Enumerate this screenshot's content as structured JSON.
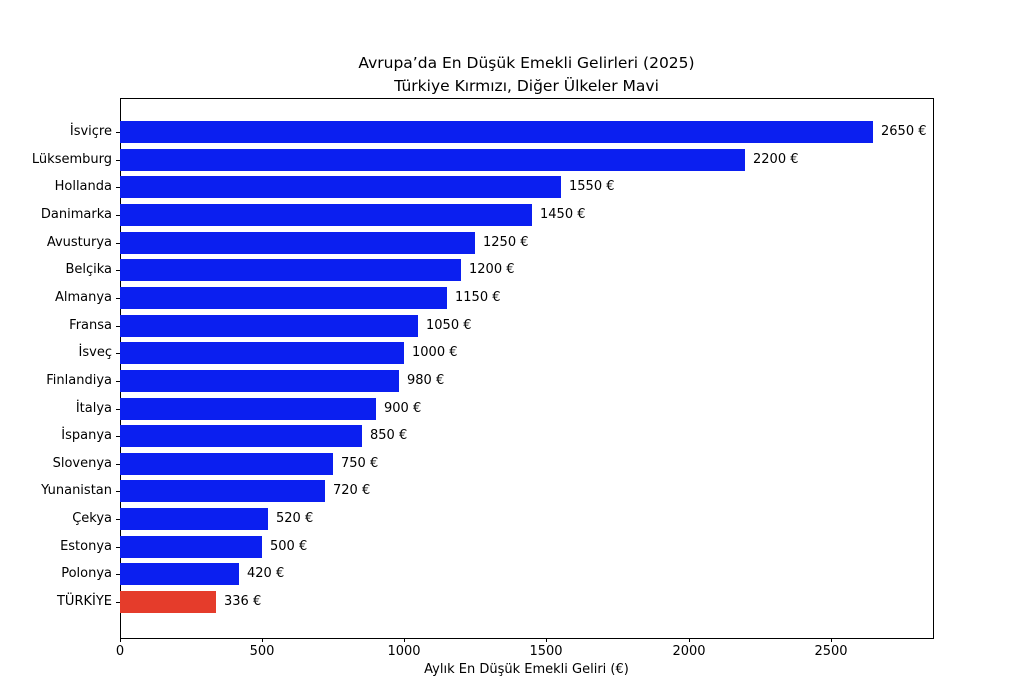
{
  "title": "Avrupa’da En Düşük Emekli Gelirleri (2025)",
  "subtitle": "Türkiye Kırmızı, Diğer Ülkeler Mavi",
  "chart_data": {
    "type": "bar",
    "orientation": "horizontal",
    "categories": [
      "İsviçre",
      "Lüksemburg",
      "Hollanda",
      "Danimarka",
      "Avusturya",
      "Belçika",
      "Almanya",
      "Fransa",
      "İsveç",
      "Finlandiya",
      "İtalya",
      "İspanya",
      "Slovenya",
      "Yunanistan",
      "Çekya",
      "Estonya",
      "Polonya",
      "TÜRKİYE"
    ],
    "values": [
      2650,
      2200,
      1550,
      1450,
      1250,
      1200,
      1150,
      1050,
      1000,
      980,
      900,
      850,
      750,
      720,
      520,
      500,
      420,
      336
    ],
    "value_suffix": " €",
    "title": "Avrupa’da En Düşük Emekli Gelirleri (2025)",
    "subtitle": "Türkiye Kırmızı, Diğer Ülkeler Mavi",
    "xlabel": "Aylık En Düşük Emekli Geliri (€)",
    "ylabel": "",
    "xlim": [
      0,
      2860
    ],
    "x_ticks": [
      0,
      500,
      1000,
      1500,
      2000,
      2500
    ],
    "x_tick_labels": [
      "0",
      "500",
      "1000",
      "1500",
      "2000",
      "2500"
    ],
    "grid": false,
    "legend": false,
    "highlight_category": "TÜRKİYE",
    "colors": {
      "bar_default": "#0b1ff0",
      "bar_highlight": "#e53c2b",
      "axis": "#000000",
      "text": "#000000",
      "background": "#ffffff"
    }
  }
}
